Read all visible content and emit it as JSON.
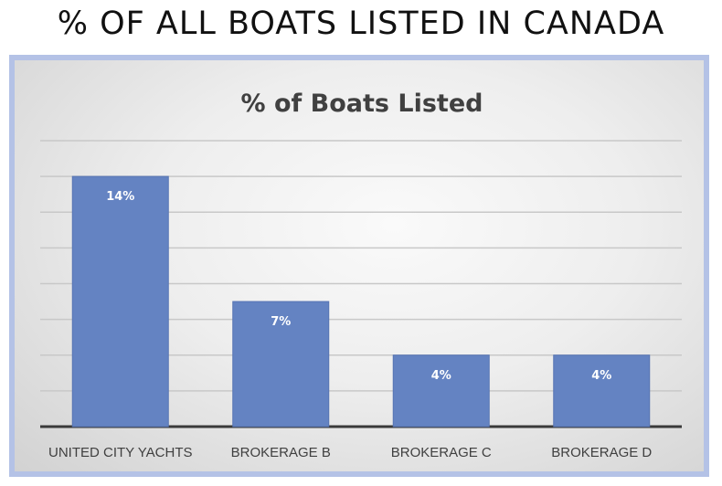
{
  "page": {
    "heading": "% OF ALL BOATS LISTED IN CANADA"
  },
  "chart_data": {
    "type": "bar",
    "title": "% of Boats Listed",
    "categories": [
      "UNITED CITY YACHTS",
      "BROKERAGE B",
      "BROKERAGE C",
      "BROKERAGE D"
    ],
    "values": [
      14,
      7,
      4,
      4
    ],
    "data_labels": [
      "14%",
      "7%",
      "4%",
      "4%"
    ],
    "ylim": [
      0,
      16
    ],
    "grid": true,
    "legend": "none",
    "xlabel": "",
    "ylabel": "",
    "colors": {
      "bar": "#6483c2",
      "bar_edge": "#5774b3",
      "grid": "#c8c8c8",
      "axis": "#3a3a3a",
      "frame": "#b4c2e6"
    }
  }
}
